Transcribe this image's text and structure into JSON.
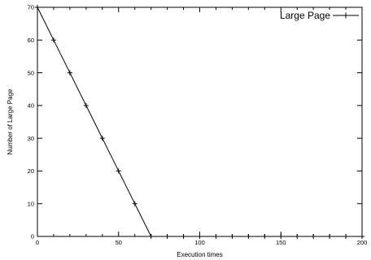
{
  "chart_data": {
    "type": "line",
    "xlabel": "Execution times",
    "ylabel": "Number of Large Page",
    "xlim": [
      0,
      200
    ],
    "ylim": [
      0,
      70
    ],
    "x_ticks": [
      0,
      50,
      100,
      150,
      200
    ],
    "y_ticks": [
      0,
      10,
      20,
      30,
      40,
      50,
      60,
      70
    ],
    "grid": false,
    "legend_position": "top-right",
    "series": [
      {
        "name": "Large Page",
        "marker": "plus",
        "color": "#000000",
        "x": [
          0,
          10,
          20,
          30,
          40,
          50,
          60,
          70,
          80,
          90,
          100,
          110,
          120,
          130,
          140,
          150,
          160,
          170,
          180,
          190,
          200
        ],
        "y": [
          70,
          60,
          50,
          40,
          30,
          20,
          10,
          0,
          0,
          0,
          0,
          0,
          0,
          0,
          0,
          0,
          0,
          0,
          0,
          0,
          0
        ]
      }
    ]
  }
}
